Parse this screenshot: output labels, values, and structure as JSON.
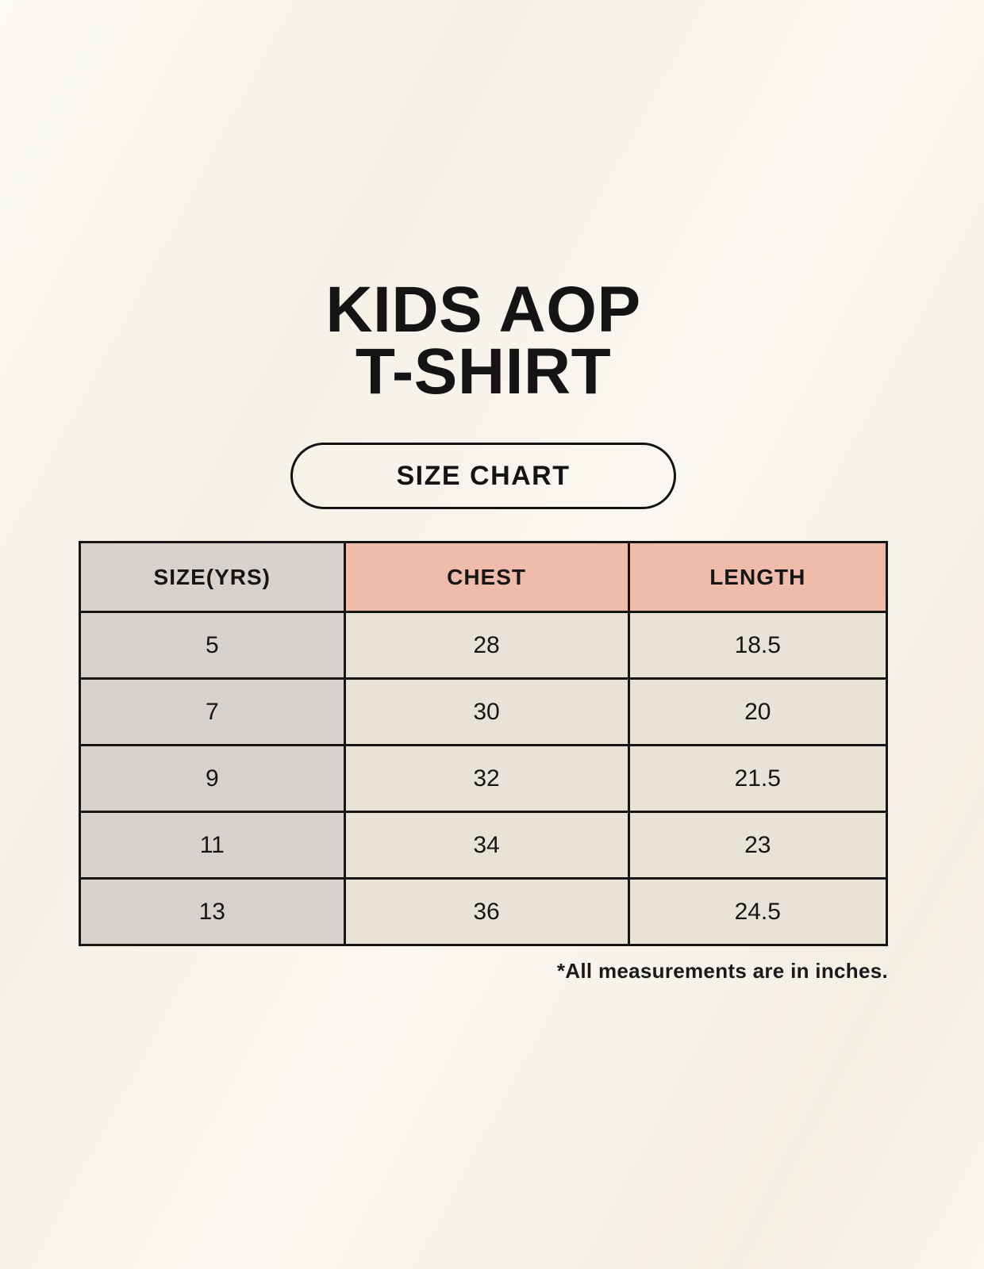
{
  "title": {
    "line1": "KIDS AOP",
    "line2": "T-SHIRT"
  },
  "badge": {
    "label": "SIZE CHART"
  },
  "footnote": "*All measurements are in inches.",
  "colors": {
    "page_background": "#f8f3ea",
    "accent_pink": "#efbcab",
    "neutral_gray": "#d8d2ce",
    "cell_cream": "#e9e2d6",
    "border": "#161616",
    "text": "#141414"
  },
  "chart_data": {
    "type": "table",
    "title": "KIDS AOP T-SHIRT SIZE CHART",
    "columns": [
      "SIZE(YRS)",
      "CHEST",
      "LENGTH"
    ],
    "rows": [
      [
        "5",
        "28",
        "18.5"
      ],
      [
        "7",
        "30",
        "20"
      ],
      [
        "9",
        "32",
        "21.5"
      ],
      [
        "11",
        "34",
        "23"
      ],
      [
        "13",
        "36",
        "24.5"
      ]
    ],
    "units_note": "*All measurements are in inches.",
    "layout_hints": {
      "header_colors": [
        "gray",
        "pink",
        "pink"
      ],
      "first_column_emphasis": true
    }
  }
}
